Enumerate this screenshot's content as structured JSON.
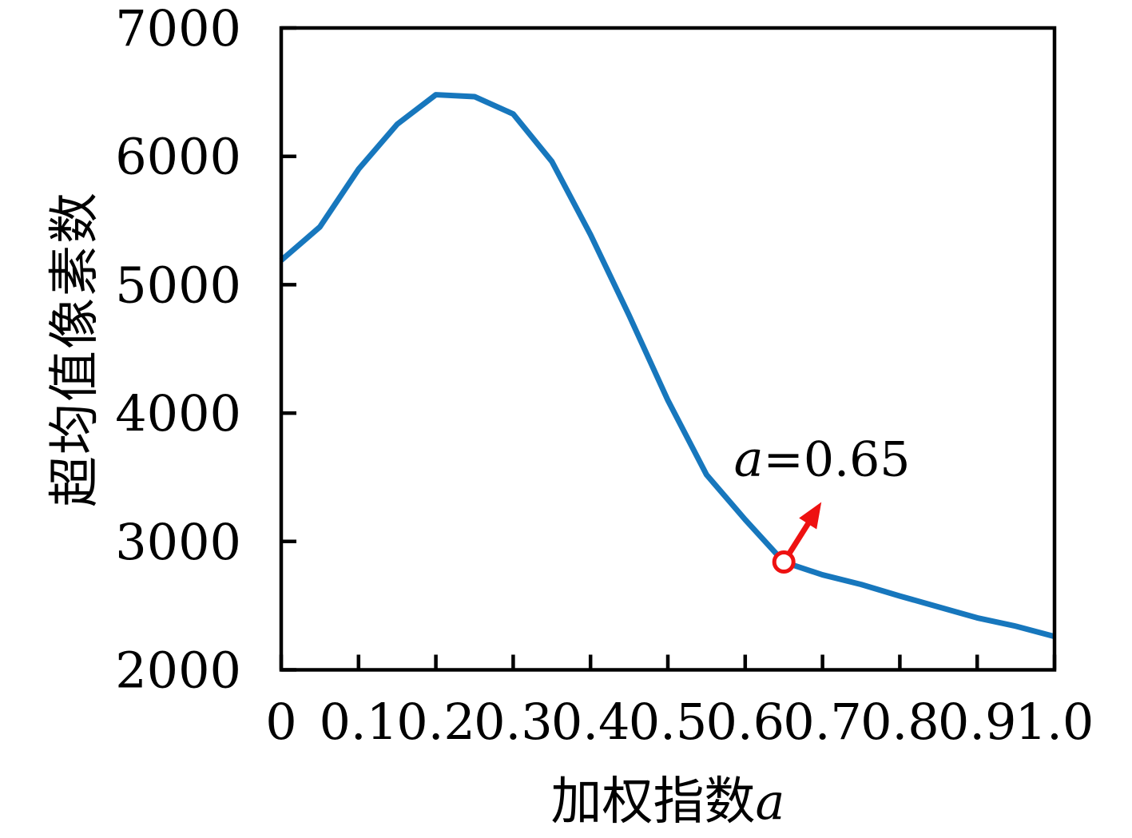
{
  "figure": {
    "background": "#ffffff",
    "frame_color": "#000000"
  },
  "chart_data": {
    "type": "line",
    "title": "",
    "xlabel_cjk": "加权指数",
    "xlabel_var": "a",
    "ylabel": "超均值像素数",
    "xlim": [
      0,
      1.0
    ],
    "ylim": [
      2000,
      7000
    ],
    "grid": false,
    "legend": null,
    "xticks": {
      "values": [
        0,
        0.1,
        0.2,
        0.3,
        0.4,
        0.5,
        0.6,
        0.7,
        0.8,
        0.9,
        1.0
      ],
      "labels": [
        "0",
        "0.1",
        "0.2",
        "0.3",
        "0.4",
        "0.5",
        "0.6",
        "0.7",
        "0.8",
        "0.9",
        "1.0"
      ]
    },
    "yticks": {
      "values": [
        2000,
        3000,
        4000,
        5000,
        6000,
        7000
      ],
      "labels": [
        "2000",
        "3000",
        "4000",
        "5000",
        "6000",
        "7000"
      ]
    },
    "series": [
      {
        "name": "超均值像素数",
        "color": "#1777bd",
        "x": [
          0,
          0.05,
          0.1,
          0.15,
          0.2,
          0.25,
          0.3,
          0.35,
          0.4,
          0.45,
          0.5,
          0.55,
          0.6,
          0.65,
          0.7,
          0.75,
          0.8,
          0.85,
          0.9,
          0.95,
          1.0
        ],
        "y": [
          5190,
          5450,
          5900,
          6250,
          6480,
          6465,
          6330,
          5960,
          5390,
          4760,
          4100,
          3520,
          3170,
          2840,
          2740,
          2665,
          2575,
          2490,
          2405,
          2340,
          2260
        ]
      }
    ],
    "highlight_point": {
      "x": 0.65,
      "y": 2840,
      "marker": "open-circle",
      "color": "#ee1111"
    },
    "annotation": {
      "text": "a=0.65",
      "var": "a",
      "rest": "=0.65",
      "color": "#000000",
      "arrow_color": "#ee1111"
    }
  }
}
